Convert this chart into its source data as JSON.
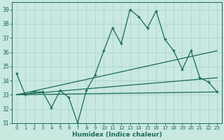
{
  "xlabel": "Humidex (Indice chaleur)",
  "background_color": "#c8e8e0",
  "grid_color": "#b0d8d0",
  "line_color": "#1a6b5a",
  "xlim": [
    -0.5,
    23.5
  ],
  "ylim": [
    31,
    39.5
  ],
  "yticks": [
    31,
    32,
    33,
    34,
    35,
    36,
    37,
    38,
    39
  ],
  "xticks": [
    0,
    1,
    2,
    3,
    4,
    5,
    6,
    7,
    8,
    9,
    10,
    11,
    12,
    13,
    14,
    15,
    16,
    17,
    18,
    19,
    20,
    21,
    22,
    23
  ],
  "main_x": [
    0,
    1,
    2,
    3,
    4,
    5,
    6,
    7,
    8,
    9,
    10,
    11,
    12,
    13,
    14,
    15,
    16,
    17,
    18,
    19,
    20,
    21,
    22,
    23
  ],
  "main_y": [
    34.5,
    33.0,
    33.2,
    33.2,
    32.1,
    33.3,
    32.8,
    31.0,
    33.3,
    34.4,
    36.1,
    37.7,
    36.6,
    39.0,
    38.5,
    37.7,
    38.9,
    36.9,
    36.1,
    34.8,
    36.1,
    34.2,
    33.9,
    33.2
  ],
  "trend1_x": [
    0,
    23
  ],
  "trend1_y": [
    33.0,
    36.1
  ],
  "trend2_x": [
    0,
    23
  ],
  "trend2_y": [
    33.0,
    34.2
  ],
  "trend3_x": [
    0,
    23
  ],
  "trend3_y": [
    33.0,
    33.2
  ]
}
